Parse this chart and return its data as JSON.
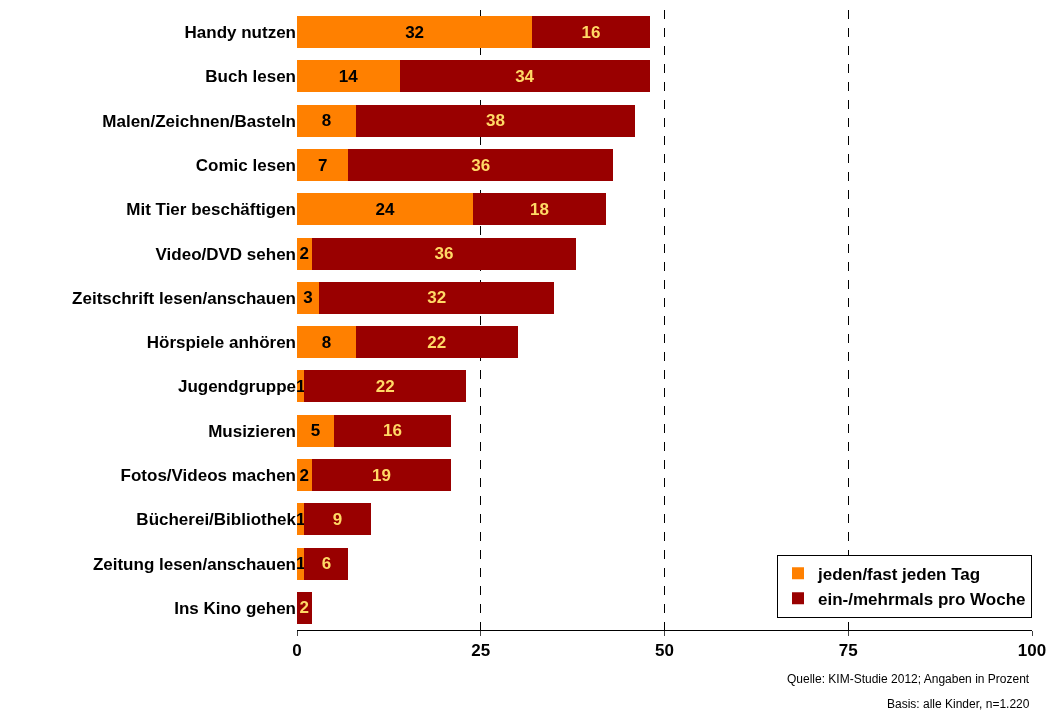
{
  "chart_data": {
    "type": "bar",
    "orientation": "horizontal",
    "stacked": true,
    "categories": [
      "Handy nutzen",
      "Buch lesen",
      "Malen/Zeichnen/Basteln",
      "Comic lesen",
      "Mit Tier beschäftigen",
      "Video/DVD sehen",
      "Zeitschrift lesen/anschauen",
      "Hörspiele anhören",
      "Jugendgruppe",
      "Musizieren",
      "Fotos/Videos machen",
      "Bücherei/Bibliothek",
      "Zeitung lesen/anschauen",
      "Ins Kino gehen"
    ],
    "series": [
      {
        "name": "jeden/fast jeden Tag",
        "color": "#ff8000",
        "values": [
          32,
          14,
          8,
          7,
          24,
          2,
          3,
          8,
          1,
          5,
          2,
          1,
          1,
          null
        ]
      },
      {
        "name": "ein-/mehrmals pro Woche",
        "color": "#990000",
        "values": [
          16,
          34,
          38,
          36,
          18,
          36,
          32,
          22,
          22,
          16,
          19,
          9,
          6,
          2
        ]
      }
    ],
    "xlim": [
      0,
      100
    ],
    "xticks": [
      0,
      25,
      50,
      75,
      100
    ],
    "grid": "x",
    "legend": "bottom right",
    "data_labels": true,
    "annotations": [
      "Quelle: KIM-Studie 2012; Angaben in Prozent",
      "Basis: alle Kinder, n=1.220"
    ]
  }
}
